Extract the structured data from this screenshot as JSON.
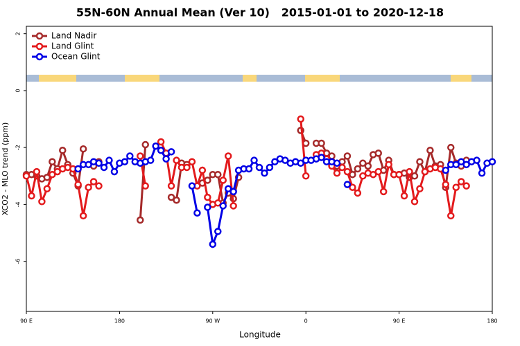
{
  "chart_data": {
    "type": "line",
    "title": "55N-60N Annual Mean (Ver 10)   2015-01-01 to 2020-12-18",
    "xlabel": "Longitude",
    "ylabel": "XCO2 - MLO trend (ppm)",
    "xlim": [
      90,
      540
    ],
    "xticks": [
      {
        "value": 90,
        "label": "90 E"
      },
      {
        "value": 180,
        "label": "180"
      },
      {
        "value": 270,
        "label": "90 W"
      },
      {
        "value": 360,
        "label": "0"
      },
      {
        "value": 450,
        "label": "90 E"
      },
      {
        "value": 540,
        "label": "180"
      }
    ],
    "ylim": [
      -7.76,
      2.26
    ],
    "yticks": [
      2,
      0,
      -2,
      -4,
      -6
    ],
    "legend": "top-left",
    "x": [
      90,
      95,
      100,
      105,
      110,
      115,
      120,
      125,
      130,
      135,
      140,
      145,
      150,
      155,
      160,
      165,
      170,
      175,
      180,
      185,
      190,
      195,
      200,
      205,
      210,
      215,
      220,
      225,
      230,
      235,
      240,
      245,
      250,
      255,
      260,
      265,
      270,
      275,
      280,
      285,
      290,
      295,
      300,
      305,
      310,
      315,
      320,
      325,
      330,
      335,
      340,
      345,
      350,
      355,
      360,
      365,
      370,
      375,
      380,
      385,
      390,
      395,
      400,
      405,
      410,
      415,
      420,
      425,
      430,
      435,
      440,
      445,
      450,
      455,
      460,
      465,
      470,
      475,
      480,
      485,
      490,
      495,
      500,
      505,
      510,
      515,
      520,
      525,
      530,
      535,
      540
    ],
    "series": [
      {
        "name": "Land Nadir",
        "color": "#a52a2a",
        "values": [
          -2.95,
          -2.95,
          -3.0,
          -3.1,
          -3.05,
          -2.5,
          -2.75,
          -2.1,
          -2.6,
          -2.9,
          -3.35,
          -2.05,
          null,
          -2.65,
          -2.5,
          null,
          null,
          null,
          null,
          null,
          null,
          null,
          -4.55,
          -1.9,
          null,
          null,
          null,
          null,
          -3.75,
          -3.85,
          -2.55,
          -2.6,
          null,
          null,
          -3.25,
          -3.15,
          -2.95,
          -2.95,
          -3.95,
          -3.6,
          -3.8,
          -3.05,
          null,
          null,
          null,
          null,
          null,
          null,
          null,
          null,
          null,
          null,
          null,
          -1.4,
          -1.85,
          null,
          -1.85,
          -1.85,
          -2.2,
          -2.3,
          -2.65,
          -2.5,
          -2.3,
          -2.95,
          -2.75,
          -2.55,
          -2.65,
          -2.25,
          -2.2,
          -2.8,
          -2.45,
          -2.95,
          -2.95,
          -2.9,
          -3.05,
          -3.0,
          -2.5,
          -2.85,
          -2.1,
          -2.65,
          -2.6,
          -3.4,
          -2.0,
          -2.55,
          -2.65,
          -2.45,
          null,
          null,
          null,
          null,
          null
        ]
      },
      {
        "name": "Land Glint",
        "color": "#e31a1c",
        "values": [
          -3.0,
          -3.7,
          -2.85,
          -3.9,
          -3.45,
          -2.95,
          -2.85,
          -2.75,
          -2.7,
          -2.75,
          -3.3,
          -4.4,
          -3.4,
          -3.2,
          -3.35,
          null,
          null,
          null,
          null,
          null,
          null,
          null,
          -2.3,
          -3.35,
          null,
          null,
          -1.8,
          -2.2,
          -3.35,
          -2.45,
          -2.7,
          -2.7,
          -2.5,
          -3.35,
          -2.8,
          -3.75,
          -4.0,
          -3.95,
          -3.15,
          -2.3,
          -4.05,
          null,
          null,
          null,
          null,
          null,
          null,
          null,
          null,
          null,
          null,
          null,
          null,
          -1.0,
          -3.0,
          null,
          -2.25,
          -2.2,
          -2.4,
          -2.65,
          -2.9,
          -2.7,
          -2.85,
          -3.4,
          -3.6,
          -3.0,
          -2.9,
          -2.95,
          -2.85,
          -3.55,
          -2.6,
          -2.95,
          -2.95,
          -3.7,
          -2.85,
          -3.9,
          -3.45,
          -2.85,
          -2.75,
          -2.7,
          -2.75,
          -3.3,
          -4.4,
          -3.4,
          -3.2,
          -3.35,
          null,
          null,
          null,
          null,
          null
        ]
      },
      {
        "name": "Ocean Glint",
        "color": "#0000e6",
        "values": [
          null,
          null,
          null,
          null,
          null,
          null,
          null,
          null,
          null,
          null,
          -2.75,
          -2.6,
          -2.6,
          -2.5,
          -2.55,
          -2.7,
          -2.45,
          -2.85,
          -2.55,
          -2.5,
          -2.3,
          -2.5,
          -2.55,
          -2.5,
          -2.45,
          -1.95,
          -2.1,
          -2.4,
          -2.15,
          null,
          null,
          null,
          -3.35,
          -4.3,
          null,
          -4.1,
          -5.4,
          -4.95,
          -4.05,
          -3.45,
          -3.55,
          -2.8,
          -2.75,
          -2.75,
          -2.45,
          -2.7,
          -2.9,
          -2.7,
          -2.5,
          -2.4,
          -2.45,
          -2.55,
          -2.5,
          -2.55,
          -2.45,
          -2.45,
          -2.4,
          -2.35,
          -2.5,
          -2.5,
          -2.55,
          null,
          -3.3,
          null,
          null,
          null,
          null,
          null,
          null,
          null,
          null,
          null,
          null,
          null,
          null,
          null,
          null,
          null,
          null,
          null,
          null,
          -2.8,
          -2.6,
          -2.6,
          -2.5,
          -2.6,
          -2.5,
          -2.45,
          -2.9,
          -2.55,
          -2.5
        ]
      }
    ]
  }
}
